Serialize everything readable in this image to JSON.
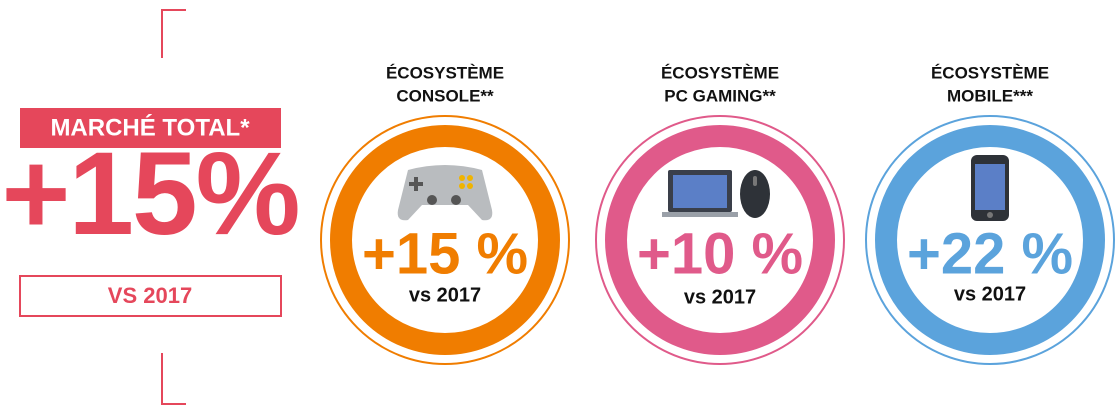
{
  "total": {
    "label": "MARCHÉ TOTAL*",
    "value": "+15%",
    "comparison": "VS 2017"
  },
  "segments": [
    {
      "title": [
        "ÉCOSYSTÈME",
        "CONSOLE**"
      ],
      "value": "+15 %",
      "comparison": "vs 2017"
    },
    {
      "title": [
        "ÉCOSYSTÈME",
        "PC GAMING**"
      ],
      "value": "+10 %",
      "comparison": "vs 2017"
    },
    {
      "title": [
        "ÉCOSYSTÈME",
        "MOBILE***"
      ],
      "value": "+22 %",
      "comparison": "vs 2017"
    }
  ]
}
